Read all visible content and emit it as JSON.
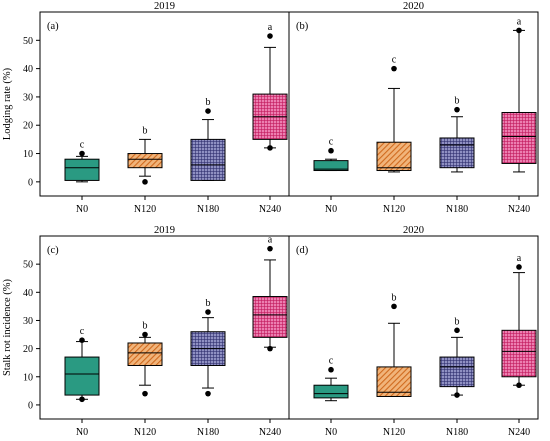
{
  "colors": {
    "N0": "#2a9a82",
    "N120": "#d06a1e",
    "N180": "#2f2f6e",
    "N240": "#c2185b",
    "frame": "#000000",
    "whisker": "#000000",
    "outlier": "#000000"
  },
  "chart_data": [
    {
      "type": "box",
      "panel_label": "(a)",
      "title": "2019",
      "ylabel": "Lodging rate (%)",
      "xlabel": "",
      "ylim": [
        -5,
        60
      ],
      "yticks": [
        0,
        10,
        20,
        30,
        40,
        50
      ],
      "categories": [
        "N0",
        "N120",
        "N180",
        "N240"
      ],
      "boxes": [
        {
          "category": "N0",
          "whisker_low": 0,
          "q1": 0.5,
          "median": 5,
          "q3": 8,
          "whisker_high": 9,
          "outliers": [
            10
          ],
          "sig": "c",
          "pattern": "solid"
        },
        {
          "category": "N120",
          "whisker_low": 2,
          "q1": 5,
          "median": 8,
          "q3": 10,
          "whisker_high": 15,
          "outliers": [
            0
          ],
          "sig": "b",
          "pattern": "hatch"
        },
        {
          "category": "N180",
          "whisker_low": 0.5,
          "q1": 0.5,
          "median": 6,
          "q3": 15,
          "whisker_high": 22,
          "outliers": [
            25
          ],
          "sig": "b",
          "pattern": "grid"
        },
        {
          "category": "N240",
          "whisker_low": 12,
          "q1": 15,
          "median": 23,
          "q3": 31,
          "whisker_high": 47.5,
          "outliers": [
            51.5,
            12
          ],
          "sig": "a",
          "pattern": "grid"
        }
      ]
    },
    {
      "type": "box",
      "panel_label": "(b)",
      "title": "2020",
      "ylabel": "",
      "xlabel": "",
      "ylim": [
        -5,
        60
      ],
      "yticks": [
        0,
        10,
        20,
        30,
        40,
        50
      ],
      "categories": [
        "N0",
        "N120",
        "N180",
        "N240"
      ],
      "boxes": [
        {
          "category": "N0",
          "whisker_low": 4,
          "q1": 4,
          "median": 4.5,
          "q3": 7.5,
          "whisker_high": 8,
          "outliers": [
            11
          ],
          "sig": "c",
          "pattern": "solid"
        },
        {
          "category": "N120",
          "whisker_low": 3.5,
          "q1": 4,
          "median": 5,
          "q3": 14,
          "whisker_high": 33,
          "outliers": [
            40
          ],
          "sig": "c",
          "pattern": "hatch"
        },
        {
          "category": "N180",
          "whisker_low": 3.5,
          "q1": 5,
          "median": 13,
          "q3": 15.5,
          "whisker_high": 23,
          "outliers": [
            25.5
          ],
          "sig": "b",
          "pattern": "grid"
        },
        {
          "category": "N240",
          "whisker_low": 3.5,
          "q1": 6.5,
          "median": 16,
          "q3": 24.5,
          "whisker_high": 53.5,
          "outliers": [
            53.5
          ],
          "sig": "a",
          "pattern": "grid"
        }
      ]
    },
    {
      "type": "box",
      "panel_label": "(c)",
      "title": "2019",
      "ylabel": "Stalk rot incidence (%)",
      "xlabel": "",
      "ylim": [
        -5,
        60
      ],
      "yticks": [
        0,
        10,
        20,
        30,
        40,
        50
      ],
      "categories": [
        "N0",
        "N120",
        "N180",
        "N240"
      ],
      "boxes": [
        {
          "category": "N0",
          "whisker_low": 2,
          "q1": 3.5,
          "median": 11,
          "q3": 17,
          "whisker_high": 22.5,
          "outliers": [
            23,
            2
          ],
          "sig": "c",
          "pattern": "solid"
        },
        {
          "category": "N120",
          "whisker_low": 7,
          "q1": 14,
          "median": 18.5,
          "q3": 22,
          "whisker_high": 24,
          "outliers": [
            25,
            4
          ],
          "sig": "b",
          "pattern": "hatch"
        },
        {
          "category": "N180",
          "whisker_low": 6,
          "q1": 14,
          "median": 20,
          "q3": 26,
          "whisker_high": 31,
          "outliers": [
            33,
            4
          ],
          "sig": "b",
          "pattern": "grid"
        },
        {
          "category": "N240",
          "whisker_low": 20.5,
          "q1": 24,
          "median": 32,
          "q3": 38.5,
          "whisker_high": 51.5,
          "outliers": [
            55.5,
            20
          ],
          "sig": "a",
          "pattern": "grid"
        }
      ]
    },
    {
      "type": "box",
      "panel_label": "(d)",
      "title": "2020",
      "ylabel": "",
      "xlabel": "",
      "ylim": [
        -5,
        60
      ],
      "yticks": [
        0,
        10,
        20,
        30,
        40,
        50
      ],
      "categories": [
        "N0",
        "N120",
        "N180",
        "N240"
      ],
      "boxes": [
        {
          "category": "N0",
          "whisker_low": 1.5,
          "q1": 2.5,
          "median": 4,
          "q3": 7,
          "whisker_high": 9.5,
          "outliers": [
            12.5
          ],
          "sig": "c",
          "pattern": "solid"
        },
        {
          "category": "N120",
          "whisker_low": 3,
          "q1": 3,
          "median": 4.5,
          "q3": 13.5,
          "whisker_high": 29,
          "outliers": [
            35
          ],
          "sig": "b",
          "pattern": "hatch"
        },
        {
          "category": "N180",
          "whisker_low": 3.5,
          "q1": 6.5,
          "median": 13.5,
          "q3": 17,
          "whisker_high": 24,
          "outliers": [
            26.5,
            3.5
          ],
          "sig": "b",
          "pattern": "grid"
        },
        {
          "category": "N240",
          "whisker_low": 7,
          "q1": 10,
          "median": 19,
          "q3": 26.5,
          "whisker_high": 47,
          "outliers": [
            49,
            7
          ],
          "sig": "a",
          "pattern": "grid"
        }
      ]
    }
  ]
}
